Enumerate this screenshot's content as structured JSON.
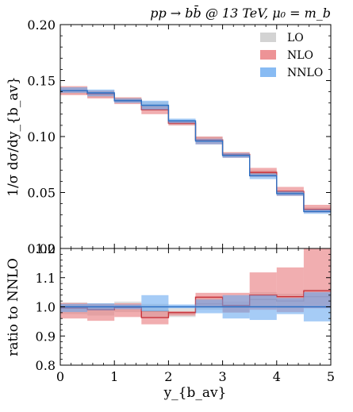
{
  "chart_data": {
    "type": "area",
    "title": "pp → bb̄ @ 13 TeV, μ₀ = m_b",
    "xlabel": "y_{b_av}",
    "x_bins": [
      0,
      0.5,
      1,
      1.5,
      2,
      2.5,
      3,
      3.5,
      4,
      4.5,
      5
    ],
    "xlim": [
      0,
      5
    ],
    "x_ticks": [
      "0",
      "1",
      "2",
      "3",
      "4",
      "5"
    ],
    "legend": {
      "placement": "top-right",
      "entries": [
        {
          "label": "LO",
          "color": "#c8c8c8"
        },
        {
          "label": "NLO",
          "color": "#e8787c"
        },
        {
          "label": "NNLO",
          "color": "#6aaaf0"
        }
      ]
    },
    "top_panel": {
      "ylabel": "1/σ dσ/dy_{b_av}",
      "ylim": [
        0,
        0.2
      ],
      "y_ticks": [
        "0.00",
        "0.05",
        "0.10",
        "0.15",
        "0.20"
      ],
      "series": [
        {
          "name": "LO",
          "color": "#c8c8c8",
          "line": "#9a9a9a",
          "central": [
            0.141,
            0.138,
            0.133,
            0.127,
            0.112,
            0.097,
            0.084,
            0.067,
            0.05,
            0.035
          ],
          "lo": [
            0.138,
            0.135,
            0.13,
            0.123,
            0.11,
            0.094,
            0.082,
            0.064,
            0.048,
            0.033
          ],
          "hi": [
            0.144,
            0.141,
            0.135,
            0.131,
            0.114,
            0.1,
            0.086,
            0.07,
            0.052,
            0.037
          ]
        },
        {
          "name": "NLO",
          "color": "#e8787c",
          "line": "#c8323a",
          "central": [
            0.141,
            0.138,
            0.132,
            0.124,
            0.112,
            0.097,
            0.084,
            0.068,
            0.051,
            0.035
          ],
          "lo": [
            0.137,
            0.134,
            0.129,
            0.12,
            0.11,
            0.093,
            0.081,
            0.064,
            0.047,
            0.032
          ],
          "hi": [
            0.145,
            0.141,
            0.135,
            0.127,
            0.114,
            0.1,
            0.086,
            0.072,
            0.055,
            0.039
          ]
        },
        {
          "name": "NNLO",
          "color": "#6aaaf0",
          "line": "#2b6fc4",
          "central": [
            0.141,
            0.139,
            0.132,
            0.128,
            0.114,
            0.096,
            0.083,
            0.065,
            0.049,
            0.033
          ],
          "lo": [
            0.139,
            0.136,
            0.13,
            0.124,
            0.112,
            0.093,
            0.081,
            0.062,
            0.047,
            0.031
          ],
          "hi": [
            0.144,
            0.142,
            0.134,
            0.132,
            0.116,
            0.098,
            0.085,
            0.067,
            0.051,
            0.035
          ]
        }
      ]
    },
    "bottom_panel": {
      "ylabel": "ratio to NNLO",
      "ylim": [
        0.8,
        1.2
      ],
      "y_ticks": [
        "0.8",
        "0.9",
        "1.0",
        "1.1",
        "1.2"
      ],
      "series": [
        {
          "name": "LO",
          "color": "#c8c8c8",
          "line": "#9a9a9a",
          "central": [
            0.995,
            0.992,
            1.0,
            0.985,
            0.98,
            1.01,
            1.0,
            1.025,
            1.02,
            1.035
          ],
          "lo": [
            0.975,
            0.97,
            0.982,
            0.962,
            0.965,
            0.99,
            0.982,
            1.0,
            0.995,
            1.005
          ],
          "hi": [
            1.015,
            1.012,
            1.018,
            1.01,
            0.995,
            1.03,
            1.018,
            1.05,
            1.045,
            1.06
          ]
        },
        {
          "name": "NLO",
          "color": "#e8787c",
          "line": "#c8323a",
          "central": [
            0.996,
            0.99,
            0.998,
            0.963,
            0.98,
            1.033,
            1.005,
            1.04,
            1.035,
            1.055
          ],
          "lo": [
            0.96,
            0.952,
            0.965,
            0.94,
            0.97,
            0.998,
            0.98,
            0.99,
            0.982,
            0.995
          ],
          "hi": [
            1.013,
            1.01,
            1.012,
            0.985,
            0.985,
            1.048,
            1.048,
            1.118,
            1.135,
            1.2
          ]
        },
        {
          "name": "NNLO",
          "color": "#6aaaf0",
          "line": "#2b6fc4",
          "central": [
            1.0,
            1.0,
            1.0,
            1.0,
            1.0,
            1.0,
            1.0,
            1.0,
            1.0,
            1.0
          ],
          "lo": [
            0.982,
            0.988,
            0.992,
            0.985,
            0.995,
            0.978,
            0.96,
            0.955,
            0.975,
            0.95
          ],
          "hi": [
            1.01,
            1.012,
            1.008,
            1.04,
            1.008,
            1.025,
            1.04,
            1.04,
            1.03,
            1.05
          ]
        }
      ]
    }
  }
}
